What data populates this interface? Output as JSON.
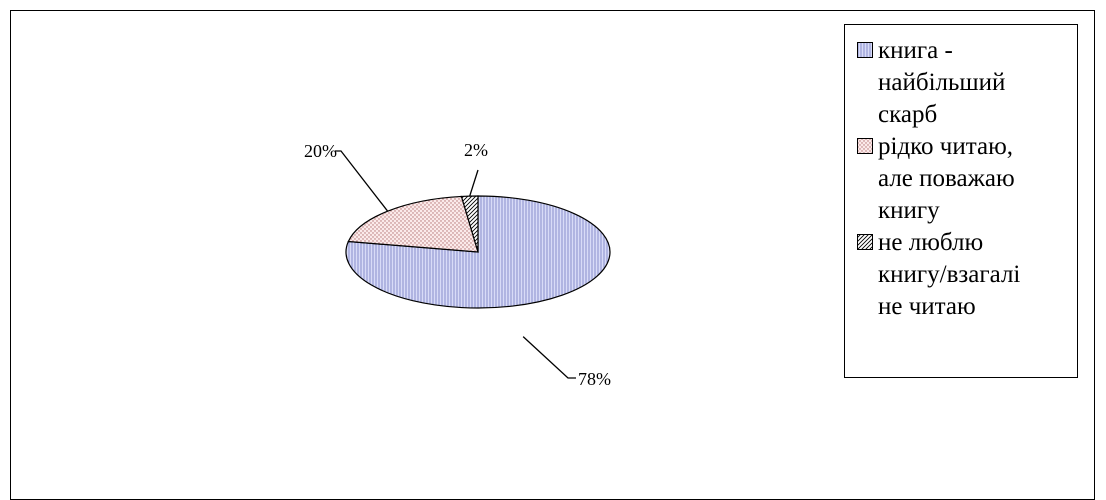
{
  "chart_data": {
    "type": "pie",
    "title": "",
    "three_d": true,
    "start_angle_deg": 90,
    "direction": "clockwise",
    "legend_position": "right",
    "slices": [
      {
        "label": "книга  -\nнайбільший\nскарб",
        "value": 78,
        "data_label": "78%",
        "color": "#C8CCF2",
        "pattern": "vertical-stripes"
      },
      {
        "label": "рідко читаю,\nале поважаю\nкнигу",
        "value": 20,
        "data_label": "20%",
        "color": "#F6DCDC",
        "pattern": "dots"
      },
      {
        "label": "не люблю\nкнигу/взагалі\nне читаю",
        "value": 2,
        "data_label": "2%",
        "color": "#FFFFFF",
        "pattern": "diagonal-hatch"
      }
    ]
  }
}
